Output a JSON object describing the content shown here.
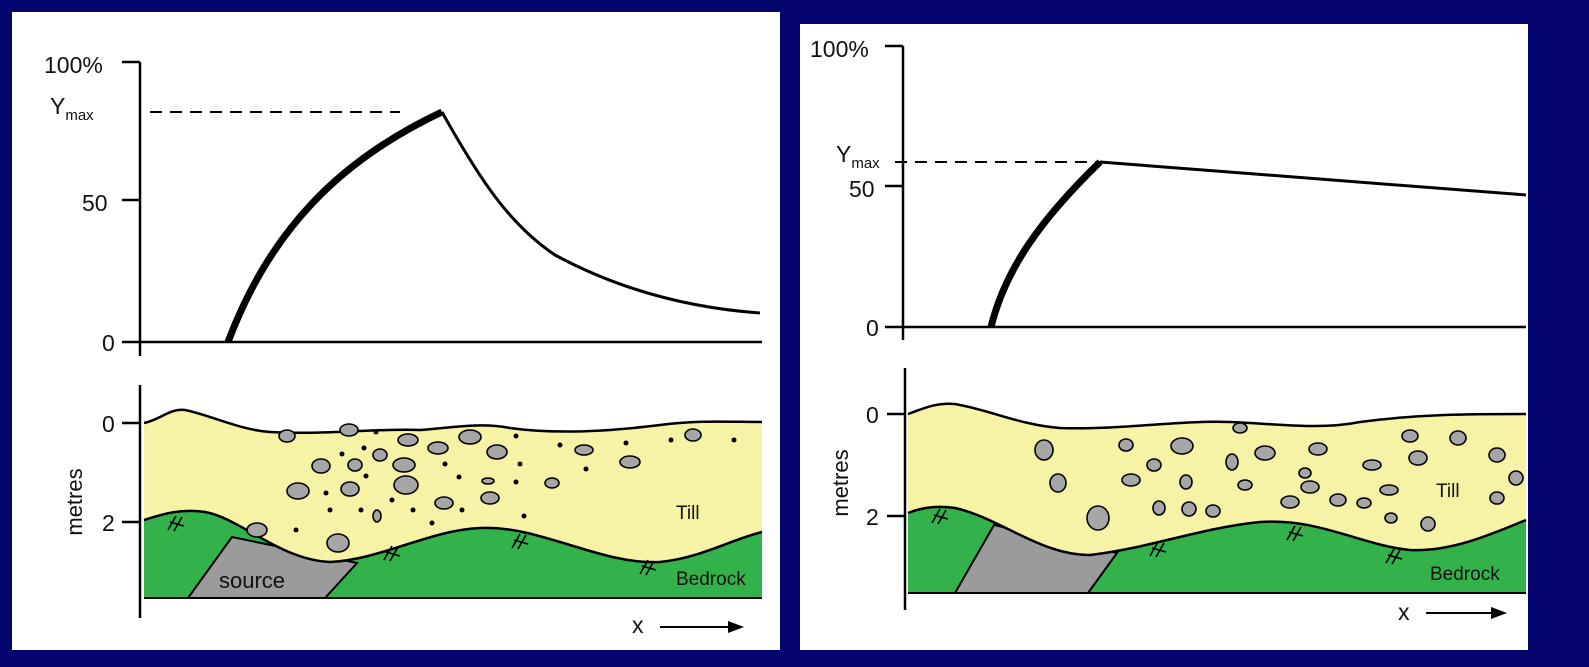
{
  "left_panel": {
    "graph": {
      "y_ticks": [
        "100%",
        "50",
        "0"
      ],
      "ymax_label": "Y",
      "ymax_sub": "max"
    },
    "section": {
      "depth_ticks": [
        "0",
        "2"
      ],
      "depth_axis_label": "metres",
      "till_label": "Till",
      "bedrock_label": "Bedrock",
      "source_label": "source",
      "x_label": "x"
    }
  },
  "right_panel": {
    "graph": {
      "y_ticks": [
        "100%",
        "50",
        "0"
      ],
      "ymax_label": "Y",
      "ymax_sub": "max"
    },
    "section": {
      "depth_ticks": [
        "0",
        "2"
      ],
      "depth_axis_label": "metres",
      "till_label": "Till",
      "bedrock_label": "Bedrock",
      "x_label": "x"
    }
  },
  "colors": {
    "frame": "#04046e",
    "background": "#ffffff",
    "till": "#f7f3a6",
    "bedrock": "#33b24c",
    "source": "#9b9b9b",
    "clast": "#a6a6a6",
    "line": "#000000"
  }
}
